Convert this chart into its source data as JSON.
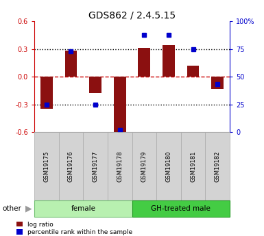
{
  "title": "GDS862 / 2.4.5.15",
  "samples": [
    "GSM19175",
    "GSM19176",
    "GSM19177",
    "GSM19178",
    "GSM19179",
    "GSM19180",
    "GSM19181",
    "GSM19182"
  ],
  "log_ratio": [
    -0.35,
    0.28,
    -0.18,
    -0.6,
    0.31,
    0.34,
    0.12,
    -0.13
  ],
  "percentile_rank": [
    25,
    73,
    25,
    2,
    88,
    88,
    75,
    43
  ],
  "groups": [
    {
      "label": "female",
      "start": 0,
      "end": 4,
      "color": "#b8f0b0",
      "edgecolor": "#70c070"
    },
    {
      "label": "GH-treated male",
      "start": 4,
      "end": 8,
      "color": "#44cc44",
      "edgecolor": "#229922"
    }
  ],
  "ylim_left": [
    -0.6,
    0.6
  ],
  "ylim_right": [
    0,
    100
  ],
  "yticks_left": [
    -0.6,
    -0.3,
    0.0,
    0.3,
    0.6
  ],
  "yticks_right": [
    0,
    25,
    50,
    75,
    100
  ],
  "ytick_labels_right": [
    "0",
    "25",
    "50",
    "75",
    "100%"
  ],
  "bar_color": "#8B1010",
  "dot_color": "#0000CC",
  "hline_color": "#cc0000",
  "grid_color": "black",
  "background_color": "#ffffff"
}
